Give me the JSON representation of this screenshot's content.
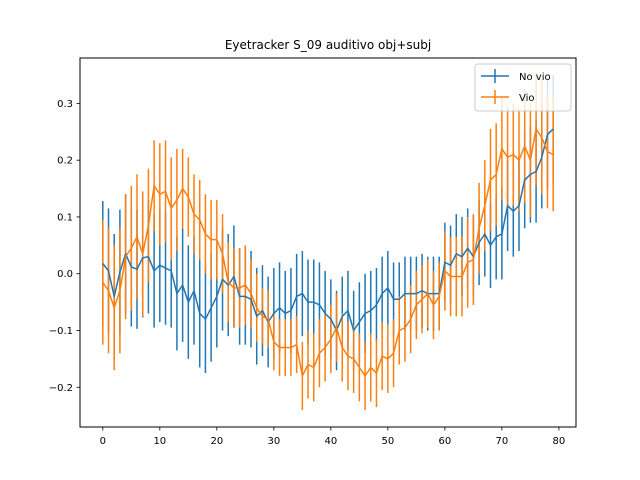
{
  "chart_data": {
    "type": "line",
    "title": "Eyetracker S_09 auditivo obj+subj",
    "xlabel": "",
    "ylabel": "",
    "xlim": [
      -4,
      83
    ],
    "ylim": [
      -0.27,
      0.38
    ],
    "x_ticks": [
      0,
      10,
      20,
      30,
      40,
      50,
      60,
      70,
      80
    ],
    "y_ticks": [
      -0.2,
      -0.1,
      0.0,
      0.1,
      0.2,
      0.3
    ],
    "y_tick_labels": [
      "−0.2",
      "−0.1",
      "0.0",
      "0.1",
      "0.2",
      "0.3"
    ],
    "grid": false,
    "legend_position": "top-right",
    "error_bars": true,
    "series": [
      {
        "name": "No vio",
        "color": "#1f77b4",
        "x": [
          0,
          1,
          2,
          3,
          4,
          5,
          6,
          7,
          8,
          9,
          10,
          11,
          12,
          13,
          14,
          15,
          16,
          17,
          18,
          19,
          20,
          21,
          22,
          23,
          24,
          25,
          26,
          27,
          28,
          29,
          30,
          31,
          32,
          33,
          34,
          35,
          36,
          37,
          38,
          39,
          40,
          41,
          42,
          43,
          44,
          45,
          46,
          47,
          48,
          49,
          50,
          51,
          52,
          53,
          54,
          55,
          56,
          57,
          58,
          59,
          60,
          61,
          62,
          63,
          64,
          65,
          66,
          67,
          68,
          69,
          70,
          71,
          72,
          73,
          74,
          75,
          76,
          77,
          78,
          79
        ],
        "y": [
          0.018,
          0.005,
          -0.04,
          0.003,
          0.035,
          0.012,
          0.008,
          0.028,
          0.03,
          0.005,
          0.015,
          0.01,
          0.005,
          -0.035,
          -0.02,
          -0.05,
          -0.03,
          -0.07,
          -0.08,
          -0.06,
          -0.04,
          -0.01,
          -0.02,
          -0.005,
          -0.04,
          -0.04,
          -0.045,
          -0.075,
          -0.065,
          -0.085,
          -0.07,
          -0.06,
          -0.07,
          -0.065,
          -0.04,
          -0.035,
          -0.05,
          -0.05,
          -0.055,
          -0.07,
          -0.08,
          -0.1,
          -0.075,
          -0.065,
          -0.1,
          -0.085,
          -0.07,
          -0.065,
          -0.055,
          -0.035,
          -0.025,
          -0.045,
          -0.045,
          -0.035,
          -0.035,
          -0.035,
          -0.03,
          -0.035,
          -0.035,
          -0.035,
          0.02,
          0.015,
          0.035,
          0.03,
          0.045,
          0.03,
          0.055,
          0.07,
          0.05,
          0.065,
          0.07,
          0.12,
          0.11,
          0.12,
          0.165,
          0.175,
          0.18,
          0.205,
          0.245,
          0.255
        ],
        "err": [
          0.11,
          0.11,
          0.11,
          0.11,
          0.105,
          0.105,
          0.105,
          0.105,
          0.1,
          0.1,
          0.1,
          0.1,
          0.1,
          0.1,
          0.1,
          0.1,
          0.095,
          0.095,
          0.095,
          0.095,
          0.09,
          0.09,
          0.09,
          0.09,
          0.085,
          0.085,
          0.085,
          0.085,
          0.08,
          0.08,
          0.08,
          0.08,
          0.075,
          0.075,
          0.075,
          0.075,
          0.075,
          0.075,
          0.075,
          0.075,
          0.07,
          0.07,
          0.07,
          0.07,
          0.07,
          0.07,
          0.07,
          0.07,
          0.065,
          0.065,
          0.065,
          0.065,
          0.065,
          0.065,
          0.065,
          0.065,
          0.065,
          0.065,
          0.065,
          0.065,
          0.07,
          0.07,
          0.07,
          0.07,
          0.07,
          0.07,
          0.075,
          0.075,
          0.075,
          0.075,
          0.08,
          0.08,
          0.08,
          0.08,
          0.085,
          0.085,
          0.09,
          0.09,
          0.095,
          0.095
        ]
      },
      {
        "name": "Vio",
        "color": "#ff7f0e",
        "x": [
          0,
          1,
          2,
          3,
          4,
          5,
          6,
          7,
          8,
          9,
          10,
          11,
          12,
          13,
          14,
          15,
          16,
          17,
          18,
          19,
          20,
          21,
          22,
          23,
          24,
          25,
          26,
          27,
          28,
          29,
          30,
          31,
          32,
          33,
          34,
          35,
          36,
          37,
          38,
          39,
          40,
          41,
          42,
          43,
          44,
          45,
          46,
          47,
          48,
          49,
          50,
          51,
          52,
          53,
          54,
          55,
          56,
          57,
          58,
          59,
          60,
          61,
          62,
          63,
          64,
          65,
          66,
          67,
          68,
          69,
          70,
          71,
          72,
          73,
          74,
          75,
          76,
          77,
          78,
          79
        ],
        "y": [
          -0.015,
          -0.03,
          -0.06,
          -0.03,
          0.03,
          0.045,
          0.065,
          0.035,
          0.085,
          0.155,
          0.14,
          0.145,
          0.115,
          0.13,
          0.15,
          0.135,
          0.105,
          0.095,
          0.07,
          0.06,
          0.06,
          0.035,
          -0.015,
          -0.025,
          -0.025,
          -0.02,
          -0.035,
          -0.06,
          -0.075,
          -0.08,
          -0.12,
          -0.13,
          -0.13,
          -0.13,
          -0.125,
          -0.18,
          -0.16,
          -0.165,
          -0.14,
          -0.13,
          -0.115,
          -0.095,
          -0.13,
          -0.145,
          -0.15,
          -0.165,
          -0.18,
          -0.165,
          -0.175,
          -0.145,
          -0.15,
          -0.14,
          -0.1,
          -0.095,
          -0.08,
          -0.055,
          -0.045,
          -0.035,
          -0.055,
          -0.04,
          0.005,
          -0.005,
          -0.005,
          -0.005,
          0.02,
          0.025,
          0.08,
          0.12,
          0.165,
          0.175,
          0.22,
          0.205,
          0.21,
          0.2,
          0.225,
          0.2,
          0.255,
          0.24,
          0.215,
          0.21
        ],
        "err": [
          0.11,
          0.11,
          0.11,
          0.11,
          0.11,
          0.11,
          0.11,
          0.11,
          0.1,
          0.08,
          0.09,
          0.09,
          0.09,
          0.09,
          0.07,
          0.07,
          0.07,
          0.07,
          0.07,
          0.07,
          0.07,
          0.07,
          0.07,
          0.07,
          0.07,
          0.07,
          0.06,
          0.06,
          0.05,
          0.05,
          0.05,
          0.05,
          0.05,
          0.05,
          0.05,
          0.06,
          0.06,
          0.06,
          0.06,
          0.06,
          0.06,
          0.06,
          0.06,
          0.06,
          0.06,
          0.06,
          0.06,
          0.06,
          0.06,
          0.06,
          0.06,
          0.06,
          0.06,
          0.06,
          0.06,
          0.06,
          0.06,
          0.06,
          0.06,
          0.06,
          0.07,
          0.07,
          0.07,
          0.07,
          0.08,
          0.08,
          0.08,
          0.08,
          0.09,
          0.09,
          0.09,
          0.09,
          0.09,
          0.09,
          0.1,
          0.1,
          0.1,
          0.1,
          0.1,
          0.1
        ]
      }
    ]
  }
}
